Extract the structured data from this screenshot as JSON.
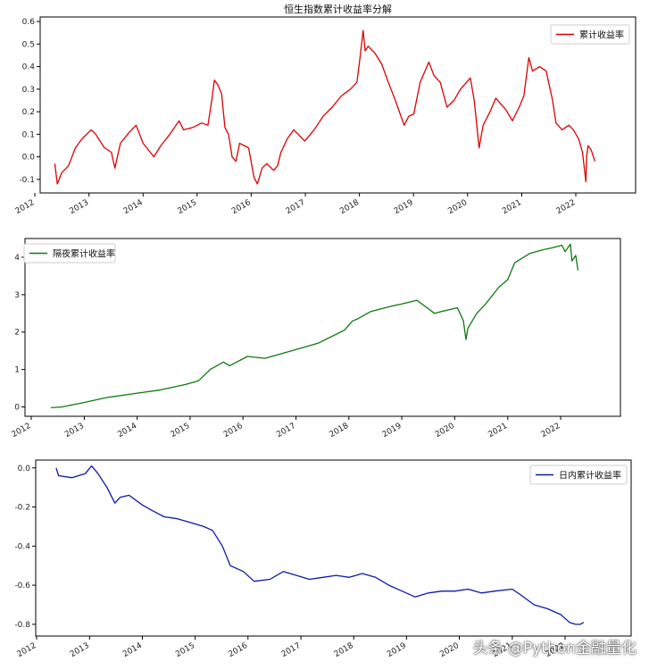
{
  "chart_data": [
    {
      "type": "line",
      "title": "恒生指数累计收益率分解",
      "xlabel": "",
      "ylabel": "",
      "xlim": [
        "2011-09-01",
        "2022-12-01"
      ],
      "ylim": [
        -0.16,
        0.62
      ],
      "yticks": [
        -0.1,
        0.0,
        0.1,
        0.2,
        0.3,
        0.4,
        0.5,
        0.6
      ],
      "ytick_labels": [
        "-0.1",
        "0.0",
        "0.1",
        "0.2",
        "0.3",
        "0.4",
        "0.5",
        "0.6"
      ],
      "xtick_labels": [
        "2012",
        "2013",
        "2014",
        "2015",
        "2016",
        "2017",
        "2018",
        "2019",
        "2020",
        "2021",
        "2022"
      ],
      "legend_position": "upper right",
      "grid": false,
      "series": [
        {
          "name": "累计收益率",
          "color": "#dd0000",
          "x": [
            "2012-05-15",
            "2012-06-01",
            "2012-07-01",
            "2012-08-15",
            "2012-10-01",
            "2012-11-15",
            "2013-01-15",
            "2013-02-15",
            "2013-04-15",
            "2013-06-01",
            "2013-06-25",
            "2013-08-01",
            "2013-10-01",
            "2013-11-15",
            "2014-01-01",
            "2014-03-15",
            "2014-05-01",
            "2014-07-01",
            "2014-09-01",
            "2014-10-01",
            "2014-12-01",
            "2015-02-01",
            "2015-03-15",
            "2015-04-10",
            "2015-04-28",
            "2015-05-20",
            "2015-06-15",
            "2015-07-08",
            "2015-08-01",
            "2015-08-25",
            "2015-09-20",
            "2015-10-15",
            "2015-11-15",
            "2015-12-15",
            "2016-01-20",
            "2016-02-12",
            "2016-03-15",
            "2016-04-15",
            "2016-06-01",
            "2016-06-27",
            "2016-07-20",
            "2016-09-01",
            "2016-10-15",
            "2016-12-28",
            "2017-03-01",
            "2017-05-01",
            "2017-07-01",
            "2017-09-01",
            "2017-11-01",
            "2017-12-15",
            "2018-01-05",
            "2018-01-26",
            "2018-02-09",
            "2018-03-01",
            "2018-04-15",
            "2018-06-01",
            "2018-07-15",
            "2018-09-01",
            "2018-10-30",
            "2018-12-01",
            "2019-01-03",
            "2019-02-15",
            "2019-04-15",
            "2019-05-20",
            "2019-07-01",
            "2019-08-15",
            "2019-10-01",
            "2019-11-15",
            "2020-01-20",
            "2020-02-15",
            "2020-03-19",
            "2020-04-15",
            "2020-06-01",
            "2020-07-10",
            "2020-09-15",
            "2020-10-30",
            "2020-12-15",
            "2021-01-15",
            "2021-02-18",
            "2021-03-15",
            "2021-05-01",
            "2021-06-15",
            "2021-07-28",
            "2021-08-20",
            "2021-10-01",
            "2021-11-15",
            "2021-12-15",
            "2022-01-20",
            "2022-02-15",
            "2022-03-10",
            "2022-03-15",
            "2022-03-25",
            "2022-04-15",
            "2022-05-10"
          ],
          "values": [
            -0.03,
            -0.12,
            -0.07,
            -0.04,
            0.04,
            0.08,
            0.12,
            0.1,
            0.04,
            0.02,
            -0.05,
            0.06,
            0.11,
            0.14,
            0.06,
            0.0,
            0.05,
            0.1,
            0.16,
            0.12,
            0.13,
            0.15,
            0.14,
            0.25,
            0.34,
            0.32,
            0.28,
            0.13,
            0.1,
            0.0,
            -0.02,
            0.06,
            0.05,
            0.04,
            -0.09,
            -0.12,
            -0.05,
            -0.03,
            -0.06,
            -0.04,
            0.02,
            0.08,
            0.12,
            0.07,
            0.12,
            0.18,
            0.22,
            0.27,
            0.3,
            0.33,
            0.44,
            0.56,
            0.47,
            0.49,
            0.46,
            0.41,
            0.33,
            0.25,
            0.14,
            0.18,
            0.19,
            0.33,
            0.42,
            0.36,
            0.33,
            0.22,
            0.25,
            0.3,
            0.35,
            0.25,
            0.04,
            0.14,
            0.2,
            0.26,
            0.21,
            0.16,
            0.22,
            0.27,
            0.44,
            0.38,
            0.4,
            0.38,
            0.25,
            0.15,
            0.12,
            0.14,
            0.12,
            0.08,
            0.02,
            -0.11,
            0.0,
            0.05,
            0.03,
            -0.02
          ]
        }
      ]
    },
    {
      "type": "line",
      "title": "",
      "xlabel": "",
      "ylabel": "",
      "xlim": [
        "2011-09-01",
        "2022-12-01"
      ],
      "ylim": [
        -0.25,
        4.5
      ],
      "yticks": [
        0,
        1,
        2,
        3,
        4
      ],
      "ytick_labels": [
        "0",
        "1",
        "2",
        "3",
        "4"
      ],
      "xtick_labels": [
        "2012",
        "2013",
        "2014",
        "2015",
        "2016",
        "2017",
        "2018",
        "2019",
        "2020",
        "2021",
        "2022"
      ],
      "legend_position": "upper left",
      "grid": false,
      "series": [
        {
          "name": "隔夜累计收益率",
          "color": "#0f7a0f",
          "x": [
            "2012-05-15",
            "2012-08-01",
            "2013-01-01",
            "2013-06-01",
            "2013-12-01",
            "2014-06-01",
            "2014-12-01",
            "2015-03-01",
            "2015-05-20",
            "2015-08-20",
            "2015-10-01",
            "2016-02-01",
            "2016-06-01",
            "2016-12-01",
            "2017-06-01",
            "2017-12-01",
            "2018-01-26",
            "2018-03-01",
            "2018-06-01",
            "2018-10-30",
            "2019-01-01",
            "2019-04-15",
            "2019-08-15",
            "2019-10-01",
            "2020-01-20",
            "2020-03-01",
            "2020-03-19",
            "2020-04-01",
            "2020-06-01",
            "2020-08-01",
            "2020-11-01",
            "2021-01-01",
            "2021-02-18",
            "2021-06-01",
            "2021-09-01",
            "2021-11-01",
            "2022-01-10",
            "2022-02-01",
            "2022-03-10",
            "2022-03-20",
            "2022-04-15",
            "2022-05-01"
          ],
          "values": [
            -0.02,
            0.0,
            0.12,
            0.25,
            0.35,
            0.45,
            0.6,
            0.7,
            1.0,
            1.2,
            1.1,
            1.35,
            1.3,
            1.5,
            1.7,
            2.05,
            2.3,
            2.35,
            2.55,
            2.7,
            2.75,
            2.85,
            2.5,
            2.55,
            2.65,
            2.3,
            1.8,
            2.1,
            2.5,
            2.75,
            3.2,
            3.4,
            3.85,
            4.1,
            4.2,
            4.25,
            4.32,
            4.15,
            4.35,
            3.9,
            4.05,
            3.65
          ]
        }
      ]
    },
    {
      "type": "line",
      "title": "",
      "xlabel": "",
      "ylabel": "",
      "xlim": [
        "2011-09-01",
        "2022-12-01"
      ],
      "ylim": [
        -0.86,
        0.04
      ],
      "yticks": [
        -0.8,
        -0.6,
        -0.4,
        -0.2,
        0.0
      ],
      "ytick_labels": [
        "-0.8",
        "-0.6",
        "-0.4",
        "-0.2",
        "0.0"
      ],
      "xtick_labels": [
        "2012",
        "2013",
        "2014",
        "2015",
        "2016",
        "2017",
        "2018",
        "2019",
        "2020",
        "2021",
        "2022"
      ],
      "legend_position": "upper right",
      "grid": false,
      "series": [
        {
          "name": "日内累计收益率",
          "color": "#0c1aa8",
          "x": [
            "2012-05-15",
            "2012-06-01",
            "2012-09-01",
            "2012-12-01",
            "2013-01-15",
            "2013-03-01",
            "2013-05-01",
            "2013-06-25",
            "2013-08-01",
            "2013-10-01",
            "2014-01-01",
            "2014-03-15",
            "2014-06-01",
            "2014-09-01",
            "2014-12-01",
            "2015-03-01",
            "2015-05-01",
            "2015-07-08",
            "2015-09-01",
            "2015-12-01",
            "2016-02-12",
            "2016-06-01",
            "2016-09-01",
            "2016-12-01",
            "2017-03-01",
            "2017-06-01",
            "2017-09-01",
            "2017-12-01",
            "2018-03-01",
            "2018-06-01",
            "2018-09-01",
            "2018-12-01",
            "2019-03-01",
            "2019-06-01",
            "2019-09-01",
            "2019-12-01",
            "2020-03-01",
            "2020-06-01",
            "2020-09-01",
            "2021-01-01",
            "2021-03-01",
            "2021-06-01",
            "2021-09-01",
            "2021-12-01",
            "2022-02-01",
            "2022-03-15",
            "2022-04-15",
            "2022-05-10"
          ],
          "values": [
            0.0,
            -0.04,
            -0.05,
            -0.03,
            0.01,
            -0.03,
            -0.1,
            -0.18,
            -0.15,
            -0.14,
            -0.19,
            -0.22,
            -0.25,
            -0.26,
            -0.28,
            -0.3,
            -0.32,
            -0.4,
            -0.5,
            -0.53,
            -0.58,
            -0.57,
            -0.53,
            -0.55,
            -0.57,
            -0.56,
            -0.55,
            -0.56,
            -0.54,
            -0.56,
            -0.6,
            -0.63,
            -0.66,
            -0.64,
            -0.63,
            -0.63,
            -0.62,
            -0.64,
            -0.63,
            -0.62,
            -0.65,
            -0.7,
            -0.72,
            -0.75,
            -0.79,
            -0.8,
            -0.8,
            -0.79
          ]
        }
      ]
    }
  ],
  "watermark": "头条 @Python金融量化"
}
